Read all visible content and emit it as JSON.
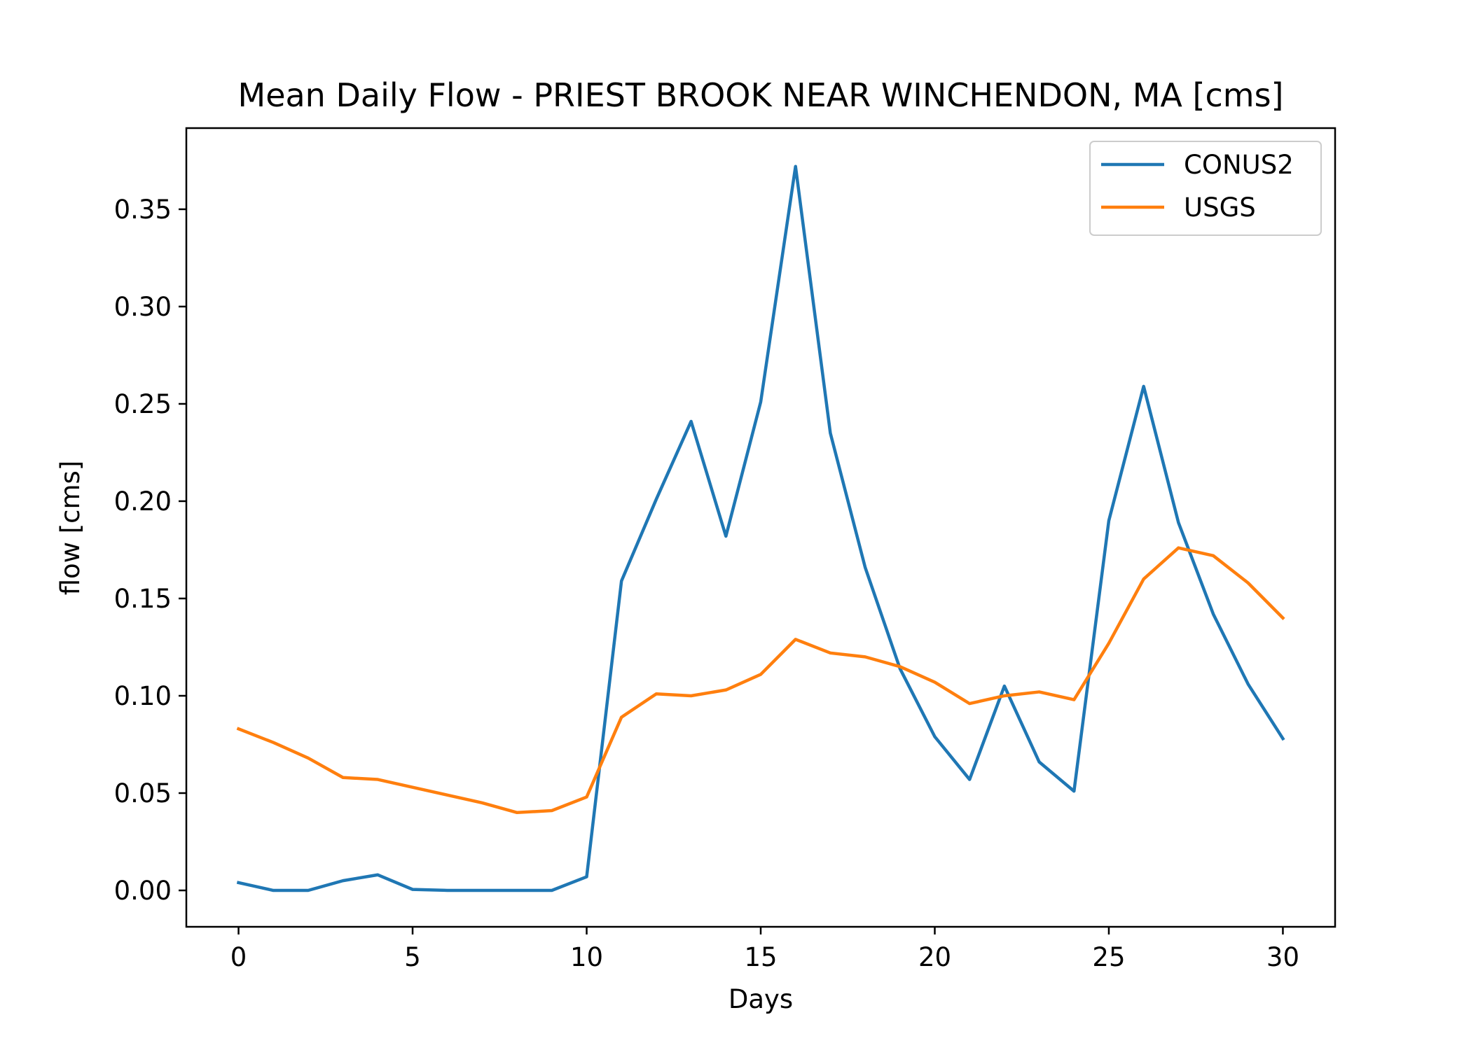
{
  "chart_data": {
    "type": "line",
    "title": "Mean Daily Flow - PRIEST BROOK NEAR WINCHENDON, MA [cms]",
    "xlabel": "Days",
    "ylabel": "flow [cms]",
    "xlim": [
      -1.5,
      31.5
    ],
    "ylim": [
      -0.0187,
      0.3917
    ],
    "xticks": [
      0,
      5,
      10,
      15,
      20,
      25,
      30
    ],
    "xtick_labels": [
      "0",
      "5",
      "10",
      "15",
      "20",
      "25",
      "30"
    ],
    "yticks": [
      0.0,
      0.05,
      0.1,
      0.15,
      0.2,
      0.25,
      0.3,
      0.35
    ],
    "ytick_labels": [
      "0.00",
      "0.05",
      "0.10",
      "0.15",
      "0.20",
      "0.25",
      "0.30",
      "0.35"
    ],
    "grid": false,
    "legend_position": "top-right",
    "x": [
      0,
      1,
      2,
      3,
      4,
      5,
      6,
      7,
      8,
      9,
      10,
      11,
      12,
      13,
      14,
      15,
      16,
      17,
      18,
      19,
      20,
      21,
      22,
      23,
      24,
      25,
      26,
      27,
      28,
      29,
      30
    ],
    "series": [
      {
        "name": "CONUS2",
        "color": "#1f77b4",
        "values": [
          0.004,
          0.0,
          0.0,
          0.005,
          0.008,
          0.0005,
          0.0,
          0.0,
          0.0,
          0.0,
          0.007,
          0.159,
          0.201,
          0.241,
          0.182,
          0.251,
          0.372,
          0.235,
          0.166,
          0.114,
          0.079,
          0.057,
          0.105,
          0.066,
          0.051,
          0.19,
          0.259,
          0.189,
          0.142,
          0.106,
          0.078
        ]
      },
      {
        "name": "USGS",
        "color": "#ff7f0e",
        "values": [
          0.083,
          0.076,
          0.068,
          0.058,
          0.057,
          0.053,
          0.049,
          0.045,
          0.04,
          0.041,
          0.048,
          0.089,
          0.101,
          0.1,
          0.103,
          0.111,
          0.129,
          0.122,
          0.12,
          0.115,
          0.107,
          0.096,
          0.1,
          0.102,
          0.098,
          0.127,
          0.16,
          0.176,
          0.172,
          0.158,
          0.14
        ]
      }
    ]
  }
}
